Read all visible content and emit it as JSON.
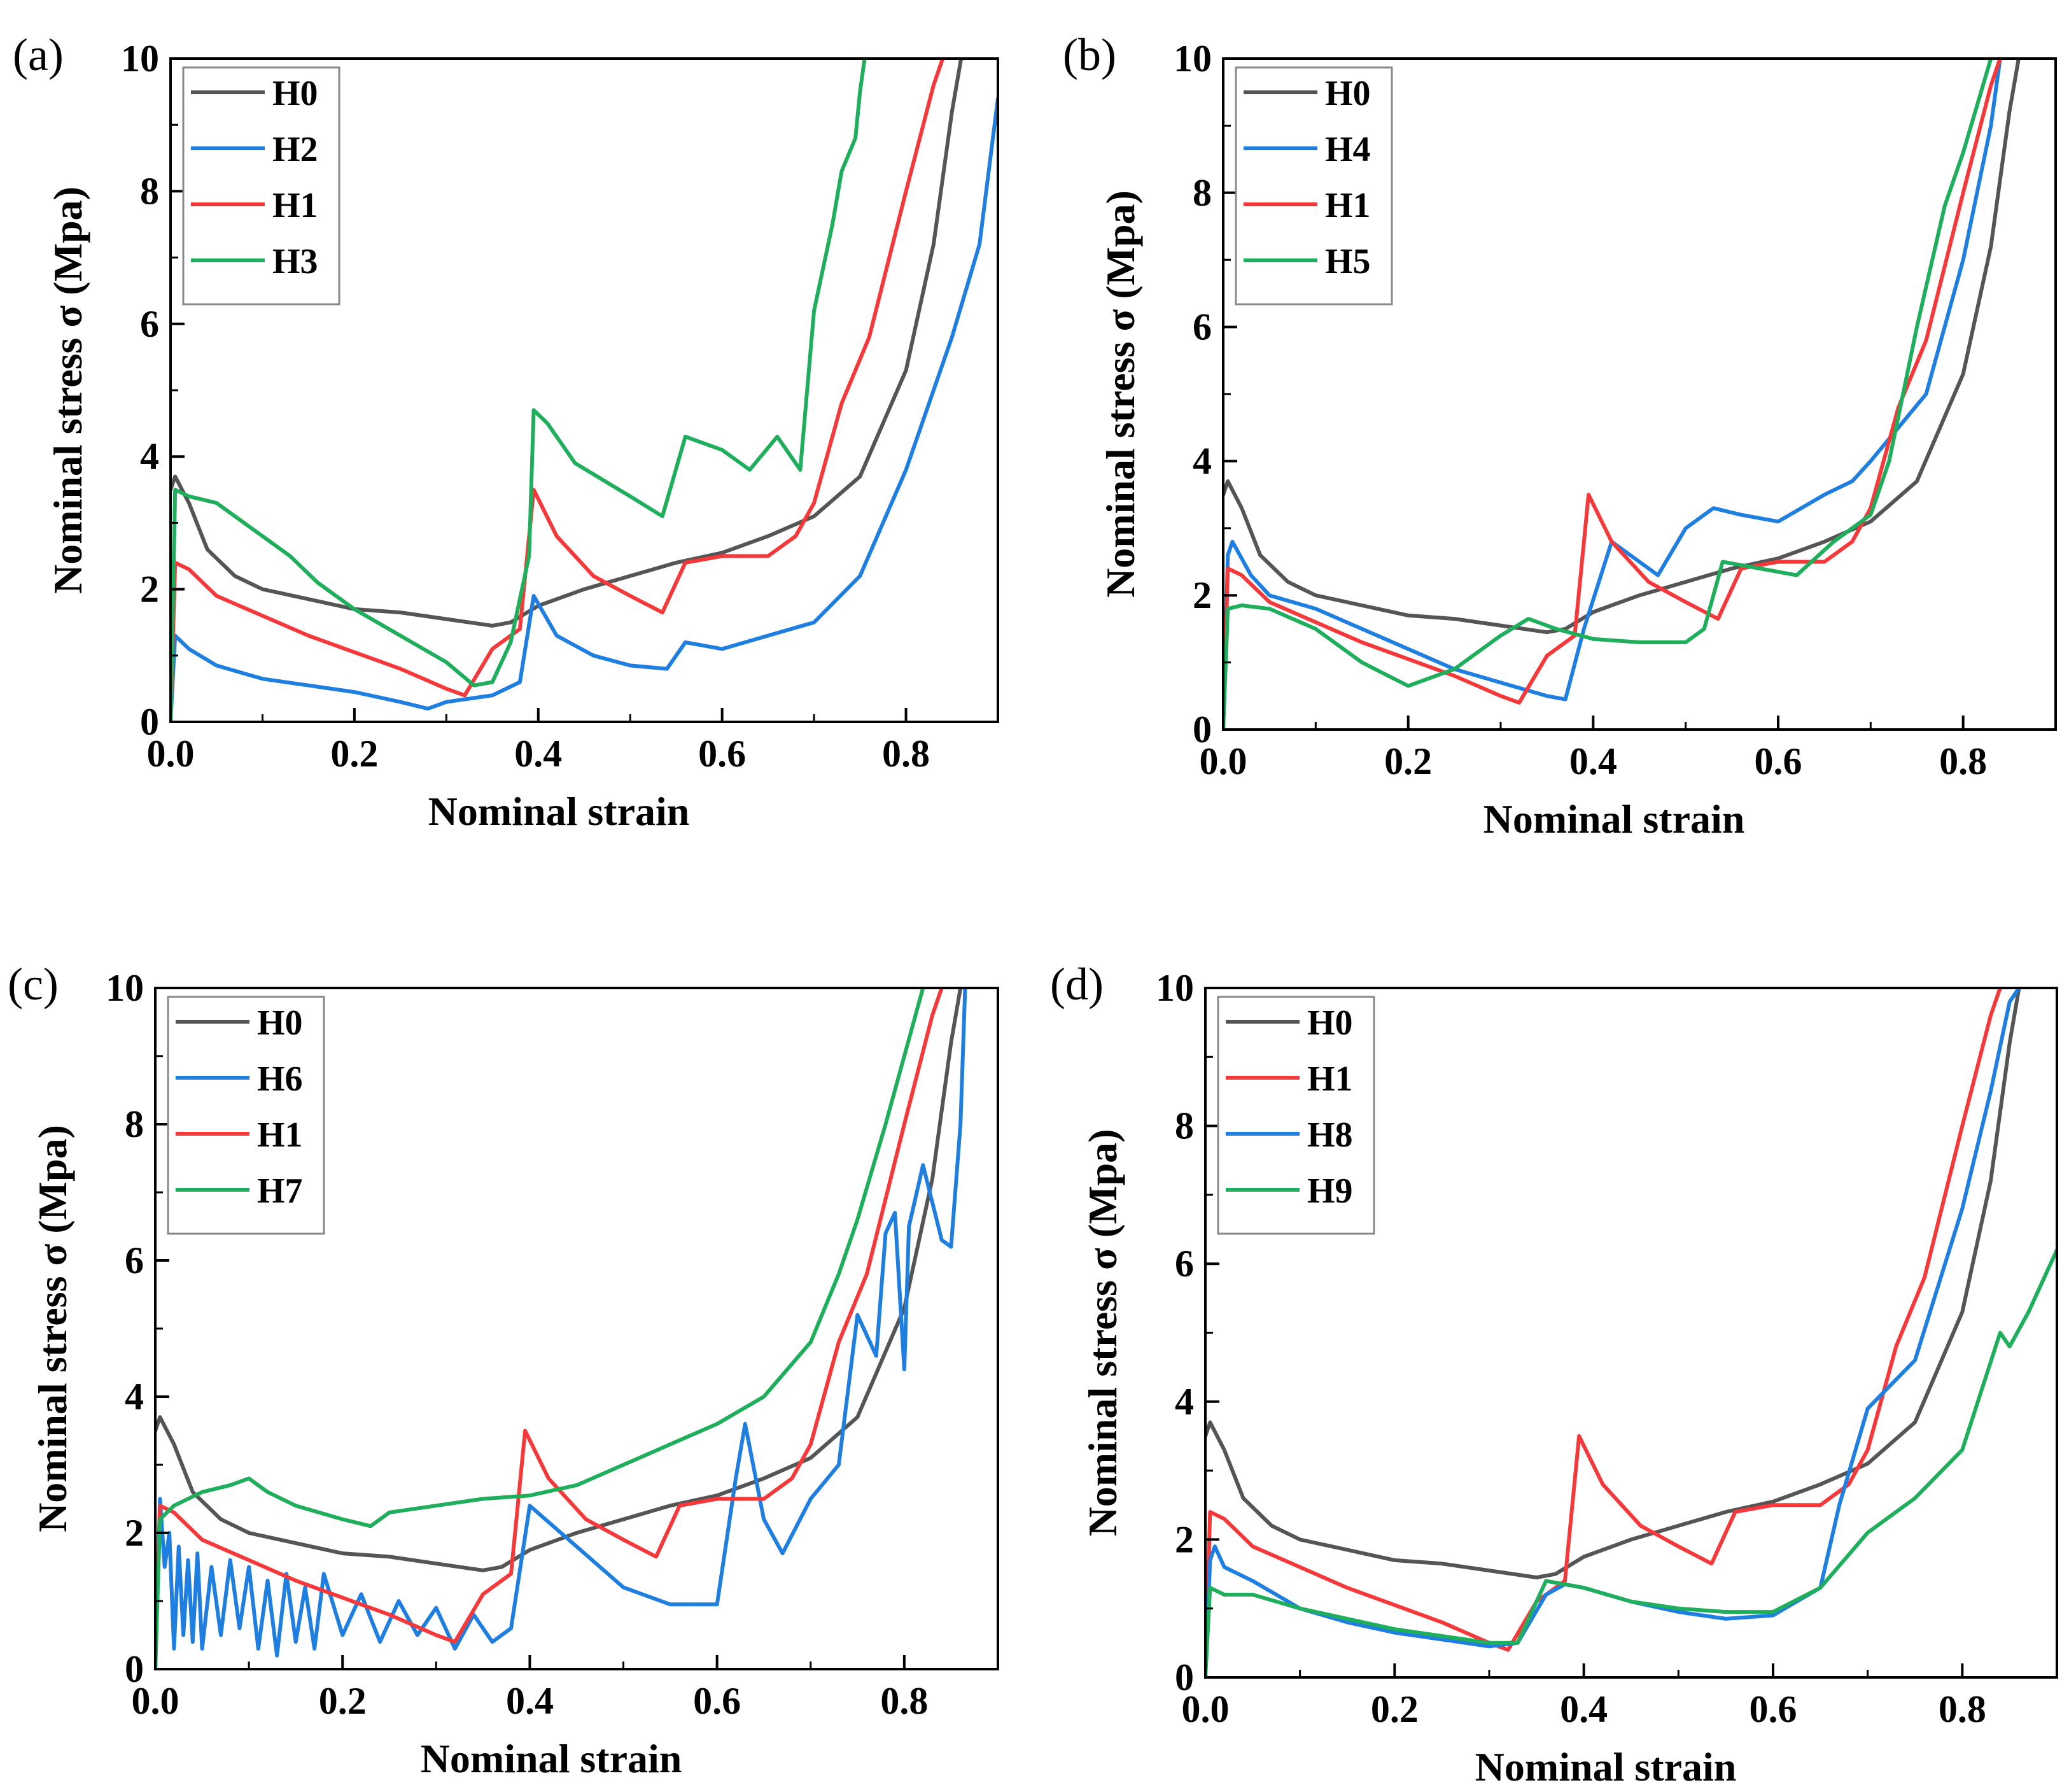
{
  "colors": {
    "H0": "#555555",
    "H1": "#f5393b",
    "H2": "#1f7fe0",
    "H3": "#1fae5c",
    "H4": "#1f7fe0",
    "H5": "#1fae5c",
    "H6": "#1f7fe0",
    "H7": "#1fae5c",
    "H8": "#1f7fe0",
    "H9": "#1fae5c"
  },
  "chart_data": [
    {
      "type": "line",
      "panel_label": "(a)",
      "xlabel": "Nominal strain",
      "ylabel": "Nominal stress σ (Mpa)",
      "xlim": [
        0,
        0.9
      ],
      "ylim": [
        0,
        10
      ],
      "xticks": [
        "0.0",
        "0.2",
        "0.4",
        "0.6",
        "0.8"
      ],
      "yticks": [
        "0",
        "2",
        "4",
        "6",
        "8",
        "10"
      ],
      "legend_position": "top-left",
      "series": [
        {
          "name": "H0",
          "x": [
            0,
            0.005,
            0.02,
            0.04,
            0.07,
            0.1,
            0.15,
            0.2,
            0.25,
            0.3,
            0.35,
            0.37,
            0.4,
            0.45,
            0.5,
            0.55,
            0.6,
            0.65,
            0.7,
            0.75,
            0.8,
            0.83,
            0.85,
            0.86
          ],
          "y": [
            3.5,
            3.7,
            3.3,
            2.6,
            2.2,
            2.0,
            1.85,
            1.7,
            1.65,
            1.55,
            1.45,
            1.5,
            1.75,
            2.0,
            2.2,
            2.4,
            2.55,
            2.8,
            3.1,
            3.7,
            5.3,
            7.2,
            9.2,
            10
          ]
        },
        {
          "name": "H2",
          "x": [
            0,
            0.005,
            0.02,
            0.05,
            0.1,
            0.15,
            0.2,
            0.25,
            0.28,
            0.3,
            0.35,
            0.38,
            0.395,
            0.42,
            0.46,
            0.5,
            0.54,
            0.56,
            0.6,
            0.65,
            0.7,
            0.75,
            0.8,
            0.85,
            0.88,
            0.9
          ],
          "y": [
            0,
            1.3,
            1.1,
            0.85,
            0.65,
            0.55,
            0.45,
            0.3,
            0.2,
            0.3,
            0.4,
            0.6,
            1.9,
            1.3,
            1.0,
            0.85,
            0.8,
            1.2,
            1.1,
            1.3,
            1.5,
            2.2,
            3.8,
            5.8,
            7.2,
            9.4
          ]
        },
        {
          "name": "H1",
          "x": [
            0,
            0.005,
            0.02,
            0.05,
            0.1,
            0.15,
            0.2,
            0.25,
            0.3,
            0.32,
            0.35,
            0.38,
            0.395,
            0.42,
            0.46,
            0.5,
            0.535,
            0.56,
            0.6,
            0.65,
            0.68,
            0.7,
            0.73,
            0.76,
            0.8,
            0.83,
            0.84
          ],
          "y": [
            0,
            2.4,
            2.3,
            1.9,
            1.6,
            1.3,
            1.05,
            0.8,
            0.5,
            0.4,
            1.1,
            1.4,
            3.5,
            2.8,
            2.2,
            1.9,
            1.65,
            2.4,
            2.5,
            2.5,
            2.8,
            3.3,
            4.8,
            5.8,
            8.0,
            9.6,
            10
          ]
        },
        {
          "name": "H3",
          "x": [
            0,
            0.005,
            0.02,
            0.05,
            0.08,
            0.1,
            0.13,
            0.16,
            0.2,
            0.25,
            0.3,
            0.33,
            0.35,
            0.37,
            0.39,
            0.395,
            0.41,
            0.44,
            0.5,
            0.535,
            0.56,
            0.6,
            0.63,
            0.66,
            0.685,
            0.7,
            0.72,
            0.73,
            0.745,
            0.75,
            0.755
          ],
          "y": [
            0,
            3.5,
            3.4,
            3.3,
            3.0,
            2.8,
            2.5,
            2.1,
            1.7,
            1.3,
            0.9,
            0.55,
            0.6,
            1.2,
            2.5,
            4.7,
            4.5,
            3.9,
            3.4,
            3.1,
            4.3,
            4.1,
            3.8,
            4.3,
            3.8,
            6.2,
            7.5,
            8.3,
            8.8,
            9.5,
            10
          ]
        }
      ]
    },
    {
      "type": "line",
      "panel_label": "(b)",
      "xlabel": "Nominal strain",
      "ylabel": "Nominal stress σ (Mpa)",
      "xlim": [
        0,
        0.9
      ],
      "ylim": [
        0,
        10
      ],
      "xticks": [
        "0.0",
        "0.2",
        "0.4",
        "0.6",
        "0.8"
      ],
      "yticks": [
        "0",
        "2",
        "4",
        "6",
        "8",
        "10"
      ],
      "legend_position": "top-left",
      "series": [
        {
          "name": "H0",
          "x": [
            0,
            0.005,
            0.02,
            0.04,
            0.07,
            0.1,
            0.15,
            0.2,
            0.25,
            0.3,
            0.35,
            0.37,
            0.4,
            0.45,
            0.5,
            0.55,
            0.6,
            0.65,
            0.7,
            0.75,
            0.8,
            0.83,
            0.85,
            0.86
          ],
          "y": [
            3.5,
            3.7,
            3.3,
            2.6,
            2.2,
            2.0,
            1.85,
            1.7,
            1.65,
            1.55,
            1.45,
            1.5,
            1.75,
            2.0,
            2.2,
            2.4,
            2.55,
            2.8,
            3.1,
            3.7,
            5.3,
            7.2,
            9.2,
            10
          ]
        },
        {
          "name": "H4",
          "x": [
            0,
            0.005,
            0.01,
            0.03,
            0.05,
            0.1,
            0.15,
            0.2,
            0.25,
            0.3,
            0.35,
            0.37,
            0.39,
            0.42,
            0.45,
            0.47,
            0.5,
            0.53,
            0.56,
            0.6,
            0.65,
            0.68,
            0.7,
            0.73,
            0.76,
            0.8,
            0.83,
            0.84
          ],
          "y": [
            0,
            2.6,
            2.8,
            2.3,
            2.0,
            1.8,
            1.5,
            1.2,
            0.9,
            0.7,
            0.5,
            0.45,
            1.5,
            2.8,
            2.5,
            2.3,
            3.0,
            3.3,
            3.2,
            3.1,
            3.5,
            3.7,
            4.0,
            4.5,
            5.0,
            7.0,
            9.0,
            10
          ]
        },
        {
          "name": "H1",
          "x": [
            0,
            0.005,
            0.02,
            0.05,
            0.1,
            0.15,
            0.2,
            0.25,
            0.3,
            0.32,
            0.35,
            0.38,
            0.395,
            0.42,
            0.46,
            0.5,
            0.535,
            0.56,
            0.6,
            0.65,
            0.68,
            0.7,
            0.73,
            0.76,
            0.8,
            0.83,
            0.84
          ],
          "y": [
            0,
            2.4,
            2.3,
            1.9,
            1.6,
            1.3,
            1.05,
            0.8,
            0.5,
            0.4,
            1.1,
            1.4,
            3.5,
            2.8,
            2.2,
            1.9,
            1.65,
            2.4,
            2.5,
            2.5,
            2.8,
            3.3,
            4.8,
            5.8,
            8.0,
            9.6,
            10
          ]
        },
        {
          "name": "H5",
          "x": [
            0,
            0.005,
            0.02,
            0.05,
            0.1,
            0.15,
            0.2,
            0.25,
            0.3,
            0.33,
            0.36,
            0.4,
            0.45,
            0.5,
            0.52,
            0.54,
            0.58,
            0.62,
            0.66,
            0.7,
            0.72,
            0.75,
            0.78,
            0.8,
            0.83
          ],
          "y": [
            0,
            1.8,
            1.85,
            1.8,
            1.5,
            1.0,
            0.65,
            0.9,
            1.4,
            1.65,
            1.5,
            1.35,
            1.3,
            1.3,
            1.5,
            2.5,
            2.4,
            2.3,
            2.8,
            3.2,
            4.0,
            6.0,
            7.8,
            8.6,
            10
          ]
        }
      ]
    },
    {
      "type": "line",
      "panel_label": "(c)",
      "xlabel": "Nominal strain",
      "ylabel": "Nominal stress σ (Mpa)",
      "xlim": [
        0,
        0.9
      ],
      "ylim": [
        0,
        10
      ],
      "xticks": [
        "0.0",
        "0.2",
        "0.4",
        "0.6",
        "0.8"
      ],
      "yticks": [
        "0",
        "2",
        "4",
        "6",
        "8",
        "10"
      ],
      "legend_position": "top-left",
      "series": [
        {
          "name": "H0",
          "x": [
            0,
            0.005,
            0.02,
            0.04,
            0.07,
            0.1,
            0.15,
            0.2,
            0.25,
            0.3,
            0.35,
            0.37,
            0.4,
            0.45,
            0.5,
            0.55,
            0.6,
            0.65,
            0.7,
            0.75,
            0.8,
            0.83,
            0.85,
            0.86
          ],
          "y": [
            3.5,
            3.7,
            3.3,
            2.6,
            2.2,
            2.0,
            1.85,
            1.7,
            1.65,
            1.55,
            1.45,
            1.5,
            1.75,
            2.0,
            2.2,
            2.4,
            2.55,
            2.8,
            3.1,
            3.7,
            5.3,
            7.2,
            9.2,
            10
          ]
        },
        {
          "name": "H6",
          "x": [
            0,
            0.005,
            0.01,
            0.015,
            0.02,
            0.025,
            0.03,
            0.035,
            0.04,
            0.045,
            0.05,
            0.06,
            0.07,
            0.08,
            0.09,
            0.1,
            0.11,
            0.12,
            0.13,
            0.14,
            0.15,
            0.16,
            0.17,
            0.18,
            0.2,
            0.22,
            0.24,
            0.26,
            0.28,
            0.3,
            0.32,
            0.34,
            0.36,
            0.38,
            0.4,
            0.45,
            0.5,
            0.55,
            0.6,
            0.62,
            0.63,
            0.65,
            0.67,
            0.7,
            0.73,
            0.75,
            0.77,
            0.78,
            0.79,
            0.8,
            0.805,
            0.81,
            0.82,
            0.84,
            0.85,
            0.86,
            0.865
          ],
          "y": [
            0,
            2.5,
            1.5,
            2.0,
            0.3,
            1.8,
            0.5,
            1.6,
            0.4,
            1.7,
            0.3,
            1.5,
            0.5,
            1.6,
            0.6,
            1.5,
            0.3,
            1.3,
            0.2,
            1.4,
            0.4,
            1.2,
            0.3,
            1.4,
            0.5,
            1.1,
            0.4,
            1.0,
            0.5,
            0.9,
            0.3,
            0.8,
            0.4,
            0.6,
            2.4,
            1.8,
            1.2,
            0.95,
            0.95,
            2.8,
            3.6,
            2.2,
            1.7,
            2.5,
            3.0,
            5.2,
            4.6,
            6.4,
            6.7,
            4.4,
            6.5,
            6.8,
            7.4,
            6.3,
            6.2,
            8.0,
            10
          ]
        },
        {
          "name": "H1",
          "x": [
            0,
            0.005,
            0.02,
            0.05,
            0.1,
            0.15,
            0.2,
            0.25,
            0.3,
            0.32,
            0.35,
            0.38,
            0.395,
            0.42,
            0.46,
            0.5,
            0.535,
            0.56,
            0.6,
            0.65,
            0.68,
            0.7,
            0.73,
            0.76,
            0.8,
            0.83,
            0.84
          ],
          "y": [
            0,
            2.4,
            2.3,
            1.9,
            1.6,
            1.3,
            1.05,
            0.8,
            0.5,
            0.4,
            1.1,
            1.4,
            3.5,
            2.8,
            2.2,
            1.9,
            1.65,
            2.4,
            2.5,
            2.5,
            2.8,
            3.3,
            4.8,
            5.8,
            8.0,
            9.6,
            10
          ]
        },
        {
          "name": "H7",
          "x": [
            0,
            0.005,
            0.02,
            0.05,
            0.08,
            0.1,
            0.12,
            0.15,
            0.2,
            0.23,
            0.25,
            0.3,
            0.35,
            0.4,
            0.45,
            0.5,
            0.55,
            0.6,
            0.65,
            0.7,
            0.73,
            0.75,
            0.78,
            0.8,
            0.82
          ],
          "y": [
            0,
            2.2,
            2.4,
            2.6,
            2.7,
            2.8,
            2.6,
            2.4,
            2.2,
            2.1,
            2.3,
            2.4,
            2.5,
            2.55,
            2.7,
            3.0,
            3.3,
            3.6,
            4.0,
            4.8,
            5.8,
            6.6,
            8.0,
            9.0,
            10
          ]
        }
      ]
    },
    {
      "type": "line",
      "panel_label": "(d)",
      "xlabel": "Nominal strain",
      "ylabel": "Nominal stress σ (Mpa)",
      "xlim": [
        0,
        0.9
      ],
      "ylim": [
        0,
        10
      ],
      "xticks": [
        "0.0",
        "0.2",
        "0.4",
        "0.6",
        "0.8"
      ],
      "yticks": [
        "0",
        "2",
        "4",
        "6",
        "8",
        "10"
      ],
      "legend_position": "top-left",
      "series": [
        {
          "name": "H0",
          "x": [
            0,
            0.005,
            0.02,
            0.04,
            0.07,
            0.1,
            0.15,
            0.2,
            0.25,
            0.3,
            0.35,
            0.37,
            0.4,
            0.45,
            0.5,
            0.55,
            0.6,
            0.65,
            0.7,
            0.75,
            0.8,
            0.83,
            0.85,
            0.86
          ],
          "y": [
            3.5,
            3.7,
            3.3,
            2.6,
            2.2,
            2.0,
            1.85,
            1.7,
            1.65,
            1.55,
            1.45,
            1.5,
            1.75,
            2.0,
            2.2,
            2.4,
            2.55,
            2.8,
            3.1,
            3.7,
            5.3,
            7.2,
            9.2,
            10
          ]
        },
        {
          "name": "H1",
          "x": [
            0,
            0.005,
            0.02,
            0.05,
            0.1,
            0.15,
            0.2,
            0.25,
            0.3,
            0.32,
            0.35,
            0.38,
            0.395,
            0.42,
            0.46,
            0.5,
            0.535,
            0.56,
            0.6,
            0.65,
            0.68,
            0.7,
            0.73,
            0.76,
            0.8,
            0.83,
            0.84
          ],
          "y": [
            0,
            2.4,
            2.3,
            1.9,
            1.6,
            1.3,
            1.05,
            0.8,
            0.5,
            0.4,
            1.1,
            1.4,
            3.5,
            2.8,
            2.2,
            1.9,
            1.65,
            2.4,
            2.5,
            2.5,
            2.8,
            3.3,
            4.8,
            5.8,
            8.0,
            9.6,
            10
          ]
        },
        {
          "name": "H8",
          "x": [
            0,
            0.005,
            0.01,
            0.02,
            0.05,
            0.1,
            0.15,
            0.2,
            0.25,
            0.3,
            0.33,
            0.36,
            0.38,
            0.4,
            0.45,
            0.5,
            0.55,
            0.6,
            0.65,
            0.67,
            0.7,
            0.75,
            0.8,
            0.83,
            0.85,
            0.86
          ],
          "y": [
            0,
            1.7,
            1.9,
            1.6,
            1.4,
            1.0,
            0.8,
            0.65,
            0.55,
            0.45,
            0.5,
            1.2,
            1.35,
            1.3,
            1.1,
            0.95,
            0.85,
            0.9,
            1.3,
            2.5,
            3.9,
            4.6,
            6.8,
            8.5,
            9.8,
            10
          ]
        },
        {
          "name": "H9",
          "x": [
            0,
            0.005,
            0.02,
            0.05,
            0.1,
            0.15,
            0.2,
            0.25,
            0.3,
            0.33,
            0.36,
            0.4,
            0.45,
            0.5,
            0.55,
            0.6,
            0.65,
            0.7,
            0.75,
            0.8,
            0.84,
            0.85,
            0.87,
            0.9
          ],
          "y": [
            0,
            1.3,
            1.2,
            1.2,
            1.0,
            0.85,
            0.7,
            0.6,
            0.5,
            0.5,
            1.4,
            1.3,
            1.1,
            1.0,
            0.95,
            0.95,
            1.3,
            2.1,
            2.6,
            3.3,
            5.0,
            4.8,
            5.3,
            6.2
          ]
        }
      ]
    }
  ]
}
